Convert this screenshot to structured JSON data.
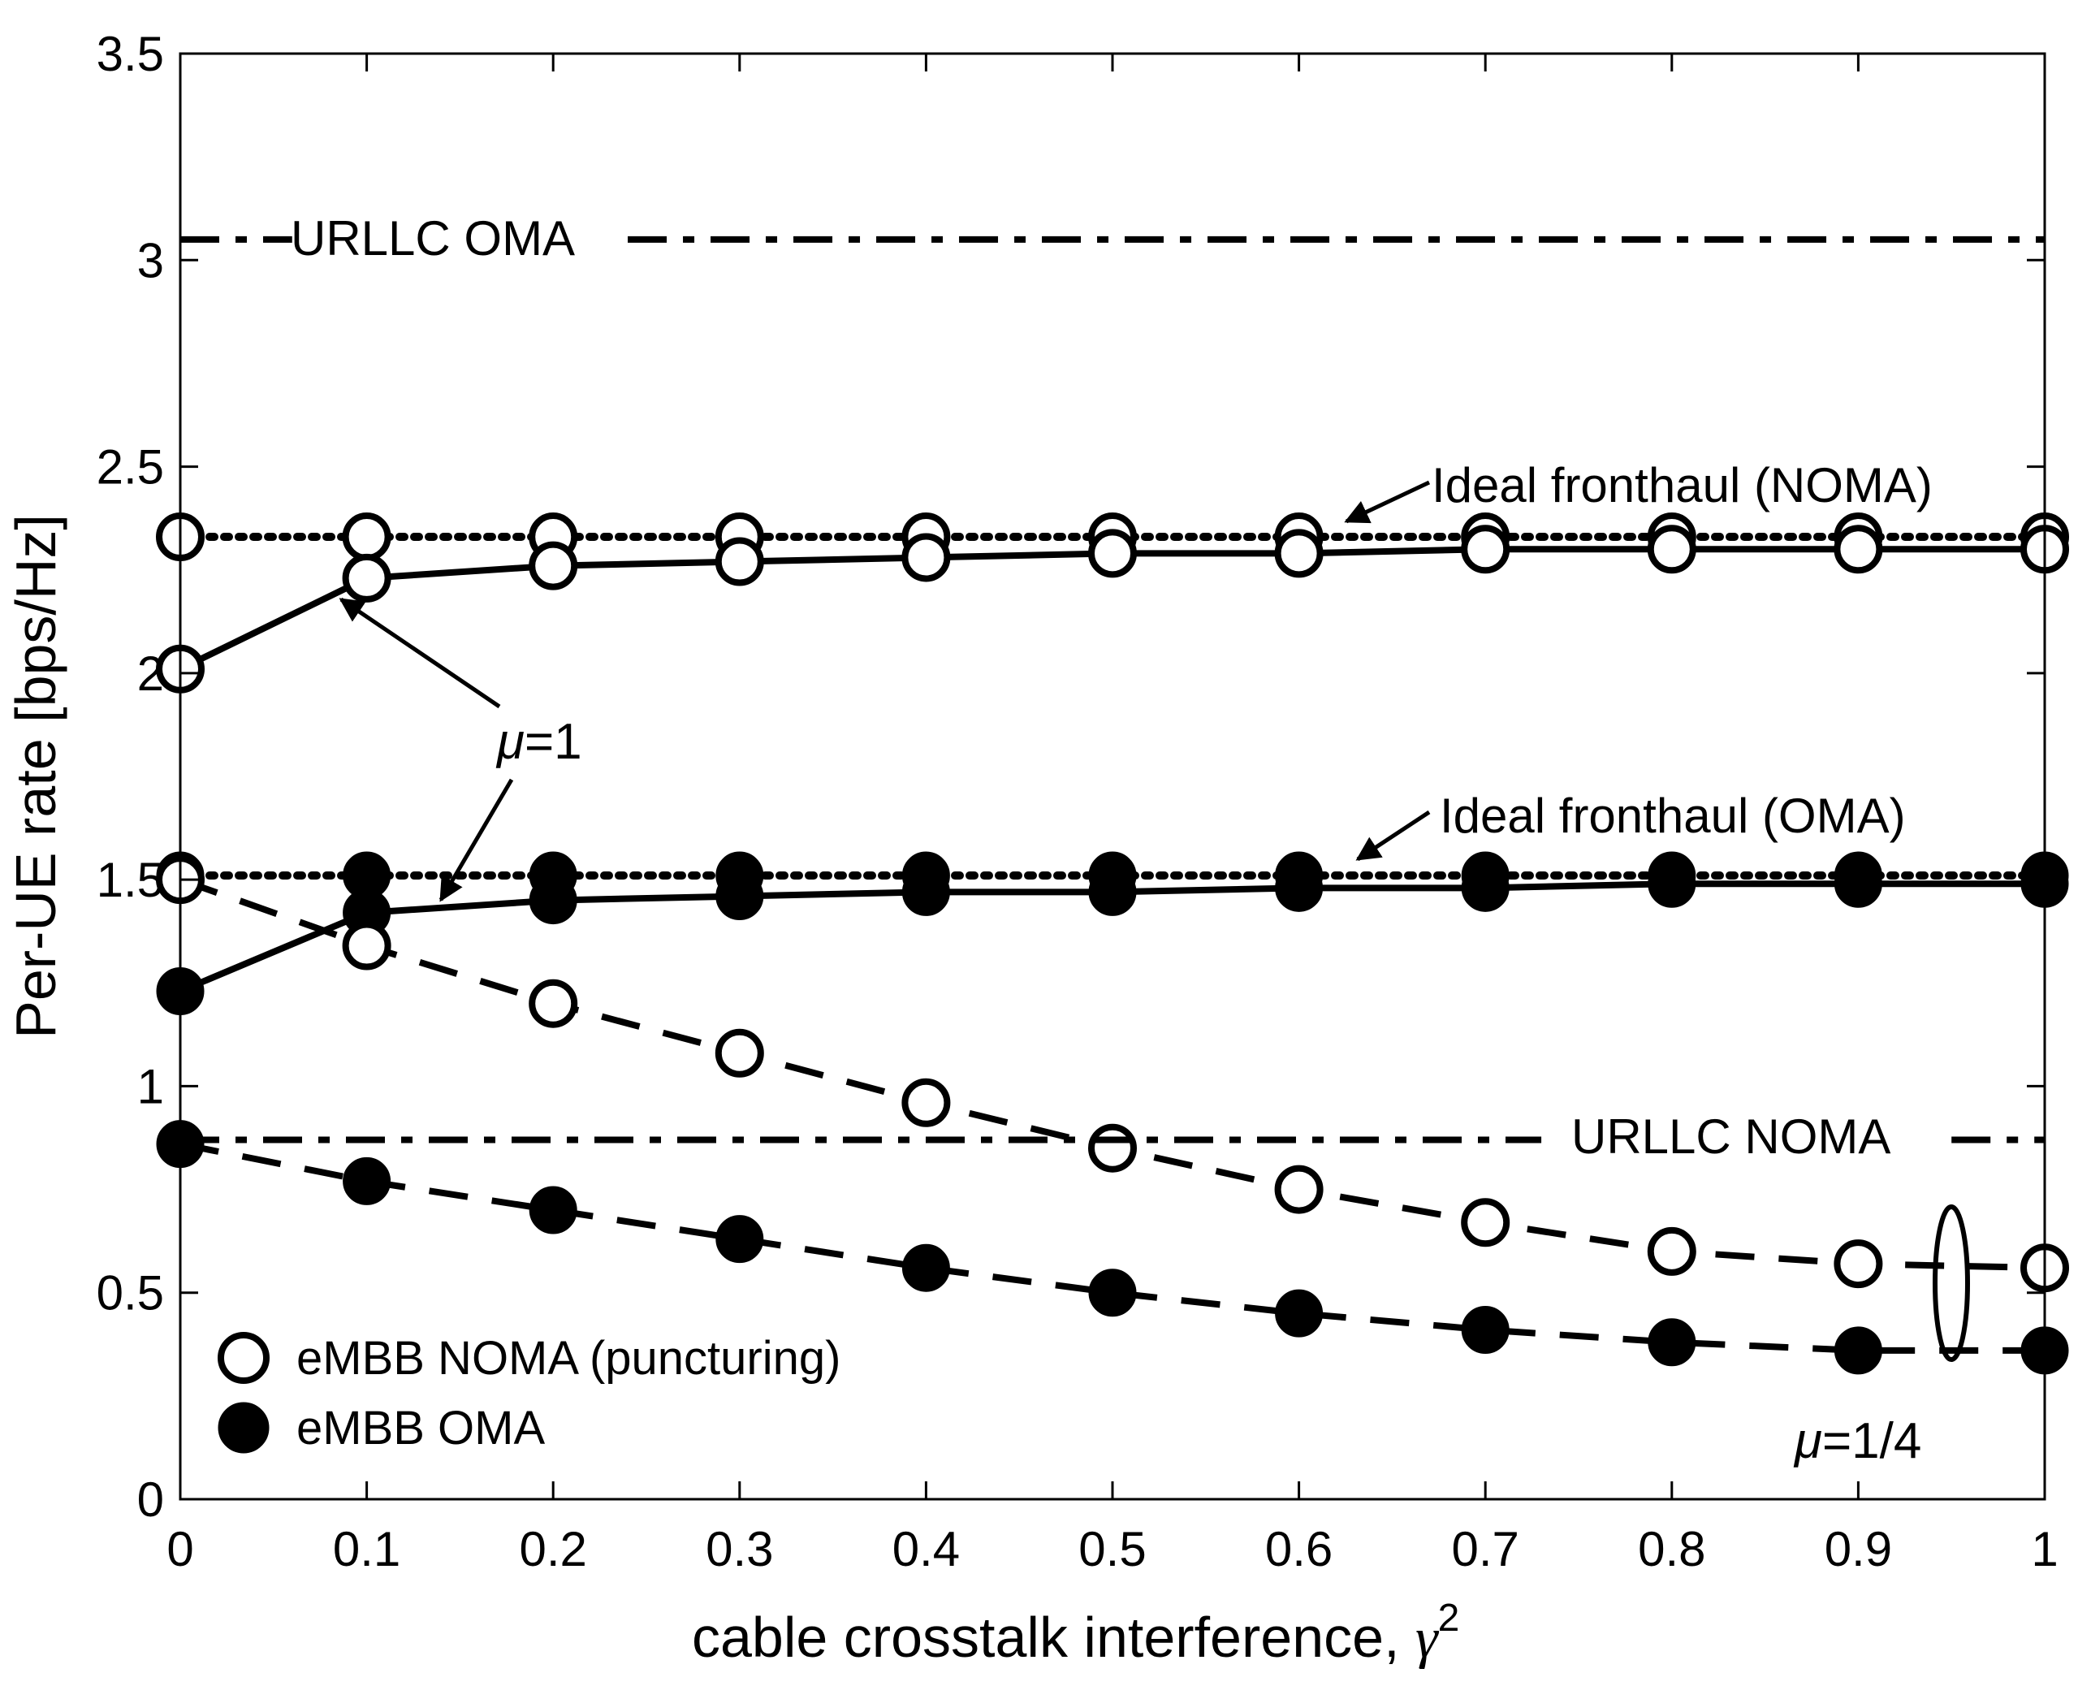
{
  "chart_data": {
    "type": "line",
    "title": "",
    "xlabel": "cable crosstalk interference, ",
    "xlabel_symbol": "γ",
    "xlabel_superscript": "2",
    "ylabel": "Per-UE rate [bps/Hz]",
    "xlim": [
      0,
      1
    ],
    "ylim": [
      0,
      3.5
    ],
    "x_ticks": [
      "0",
      "0.1",
      "0.2",
      "0.3",
      "0.4",
      "0.5",
      "0.6",
      "0.7",
      "0.8",
      "0.9",
      "1"
    ],
    "y_ticks": [
      "0",
      "0.5",
      "1",
      "1.5",
      "2",
      "2.5",
      "3",
      "3.5"
    ],
    "grid": false,
    "legend": {
      "position": "bottom-left",
      "entries": [
        {
          "label": "eMBB NOMA (puncturing)",
          "marker": "open-circle"
        },
        {
          "label": "eMBB OMA",
          "marker": "filled-circle"
        }
      ]
    },
    "x": [
      0,
      0.1,
      0.2,
      0.3,
      0.4,
      0.5,
      0.6,
      0.7,
      0.8,
      0.9,
      1
    ],
    "series": [
      {
        "name": "Ideal fronthaul (NOMA)",
        "style": "dotted",
        "marker": "open-circle",
        "values": [
          2.33,
          2.33,
          2.33,
          2.33,
          2.33,
          2.33,
          2.33,
          2.33,
          2.33,
          2.33,
          2.33
        ]
      },
      {
        "name": "eMBB NOMA (puncturing), mu=1",
        "style": "solid",
        "marker": "open-circle",
        "values": [
          2.01,
          2.23,
          2.26,
          2.27,
          2.28,
          2.29,
          2.29,
          2.3,
          2.3,
          2.3,
          2.3
        ]
      },
      {
        "name": "Ideal fronthaul (OMA)",
        "style": "dotted",
        "marker": "filled-circle",
        "values": [
          1.51,
          1.51,
          1.51,
          1.51,
          1.51,
          1.51,
          1.51,
          1.51,
          1.51,
          1.51,
          1.51
        ]
      },
      {
        "name": "eMBB OMA, mu=1",
        "style": "solid",
        "marker": "filled-circle",
        "values": [
          1.23,
          1.42,
          1.45,
          1.46,
          1.47,
          1.47,
          1.48,
          1.48,
          1.49,
          1.49,
          1.49
        ]
      },
      {
        "name": "eMBB NOMA (puncturing), mu=1/4",
        "style": "dashed",
        "marker": "open-circle",
        "values": [
          1.5,
          1.34,
          1.2,
          1.08,
          0.96,
          0.85,
          0.75,
          0.67,
          0.6,
          0.57,
          0.56
        ]
      },
      {
        "name": "eMBB OMA, mu=1/4",
        "style": "dashed",
        "marker": "filled-circle",
        "values": [
          0.86,
          0.77,
          0.7,
          0.63,
          0.56,
          0.5,
          0.45,
          0.41,
          0.38,
          0.36,
          0.36
        ]
      },
      {
        "name": "URLLC OMA",
        "style": "dashdot",
        "marker": "none",
        "values": [
          3.05,
          3.05,
          3.05,
          3.05,
          3.05,
          3.05,
          3.05,
          3.05,
          3.05,
          3.05,
          3.05
        ]
      },
      {
        "name": "URLLC NOMA",
        "style": "dashdot",
        "marker": "none",
        "values": [
          0.87,
          0.87,
          0.87,
          0.87,
          0.87,
          0.87,
          0.87,
          0.87,
          0.87,
          0.87,
          0.87
        ]
      }
    ],
    "annotations": {
      "urllc_oma": "URLLC OMA",
      "urllc_noma": "URLLC NOMA",
      "ideal_noma": "Ideal fronthaul (NOMA)",
      "ideal_oma": "Ideal fronthaul (OMA)",
      "mu1_symbol": "μ",
      "mu1_value": "=1",
      "mu14_symbol": "μ",
      "mu14_value": "=1/4"
    }
  }
}
